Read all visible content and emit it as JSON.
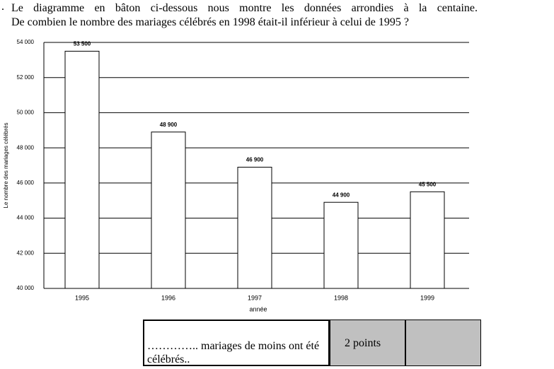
{
  "question": {
    "marker": ".",
    "lines": [
      "Le diagramme en bâton ci-dessous nous montre les données arrondies à la centaine.",
      "De combien le nombre des mariages célébrés en 1998 était-il inférieur à celui de 1995 ?"
    ]
  },
  "chart_data": {
    "type": "bar",
    "categories": [
      "1995",
      "1996",
      "1997",
      "1998",
      "1999"
    ],
    "values": [
      53500,
      48900,
      46900,
      44900,
      45500
    ],
    "value_labels": [
      "53 500",
      "48 900",
      "46 900",
      "44 900",
      "45 500"
    ],
    "color": "#ffffff",
    "ylim": [
      40000,
      54000
    ],
    "yticks": [
      {
        "value": 40000,
        "label": "40 000"
      },
      {
        "value": 42000,
        "label": "42 000"
      },
      {
        "value": 44000,
        "label": "44 000"
      },
      {
        "value": 46000,
        "label": "46 000"
      },
      {
        "value": 48000,
        "label": "48 000"
      },
      {
        "value": 50000,
        "label": "50 000"
      },
      {
        "value": 52000,
        "label": "52 000"
      },
      {
        "value": 54000,
        "label": "54 000"
      }
    ],
    "grid": true,
    "ylabel": "Le nombre des mariages célébrés",
    "xlabel": "année"
  },
  "answer_table": {
    "answer": "………….. mariages de moins ont été célébrés..",
    "points": "2 points"
  }
}
